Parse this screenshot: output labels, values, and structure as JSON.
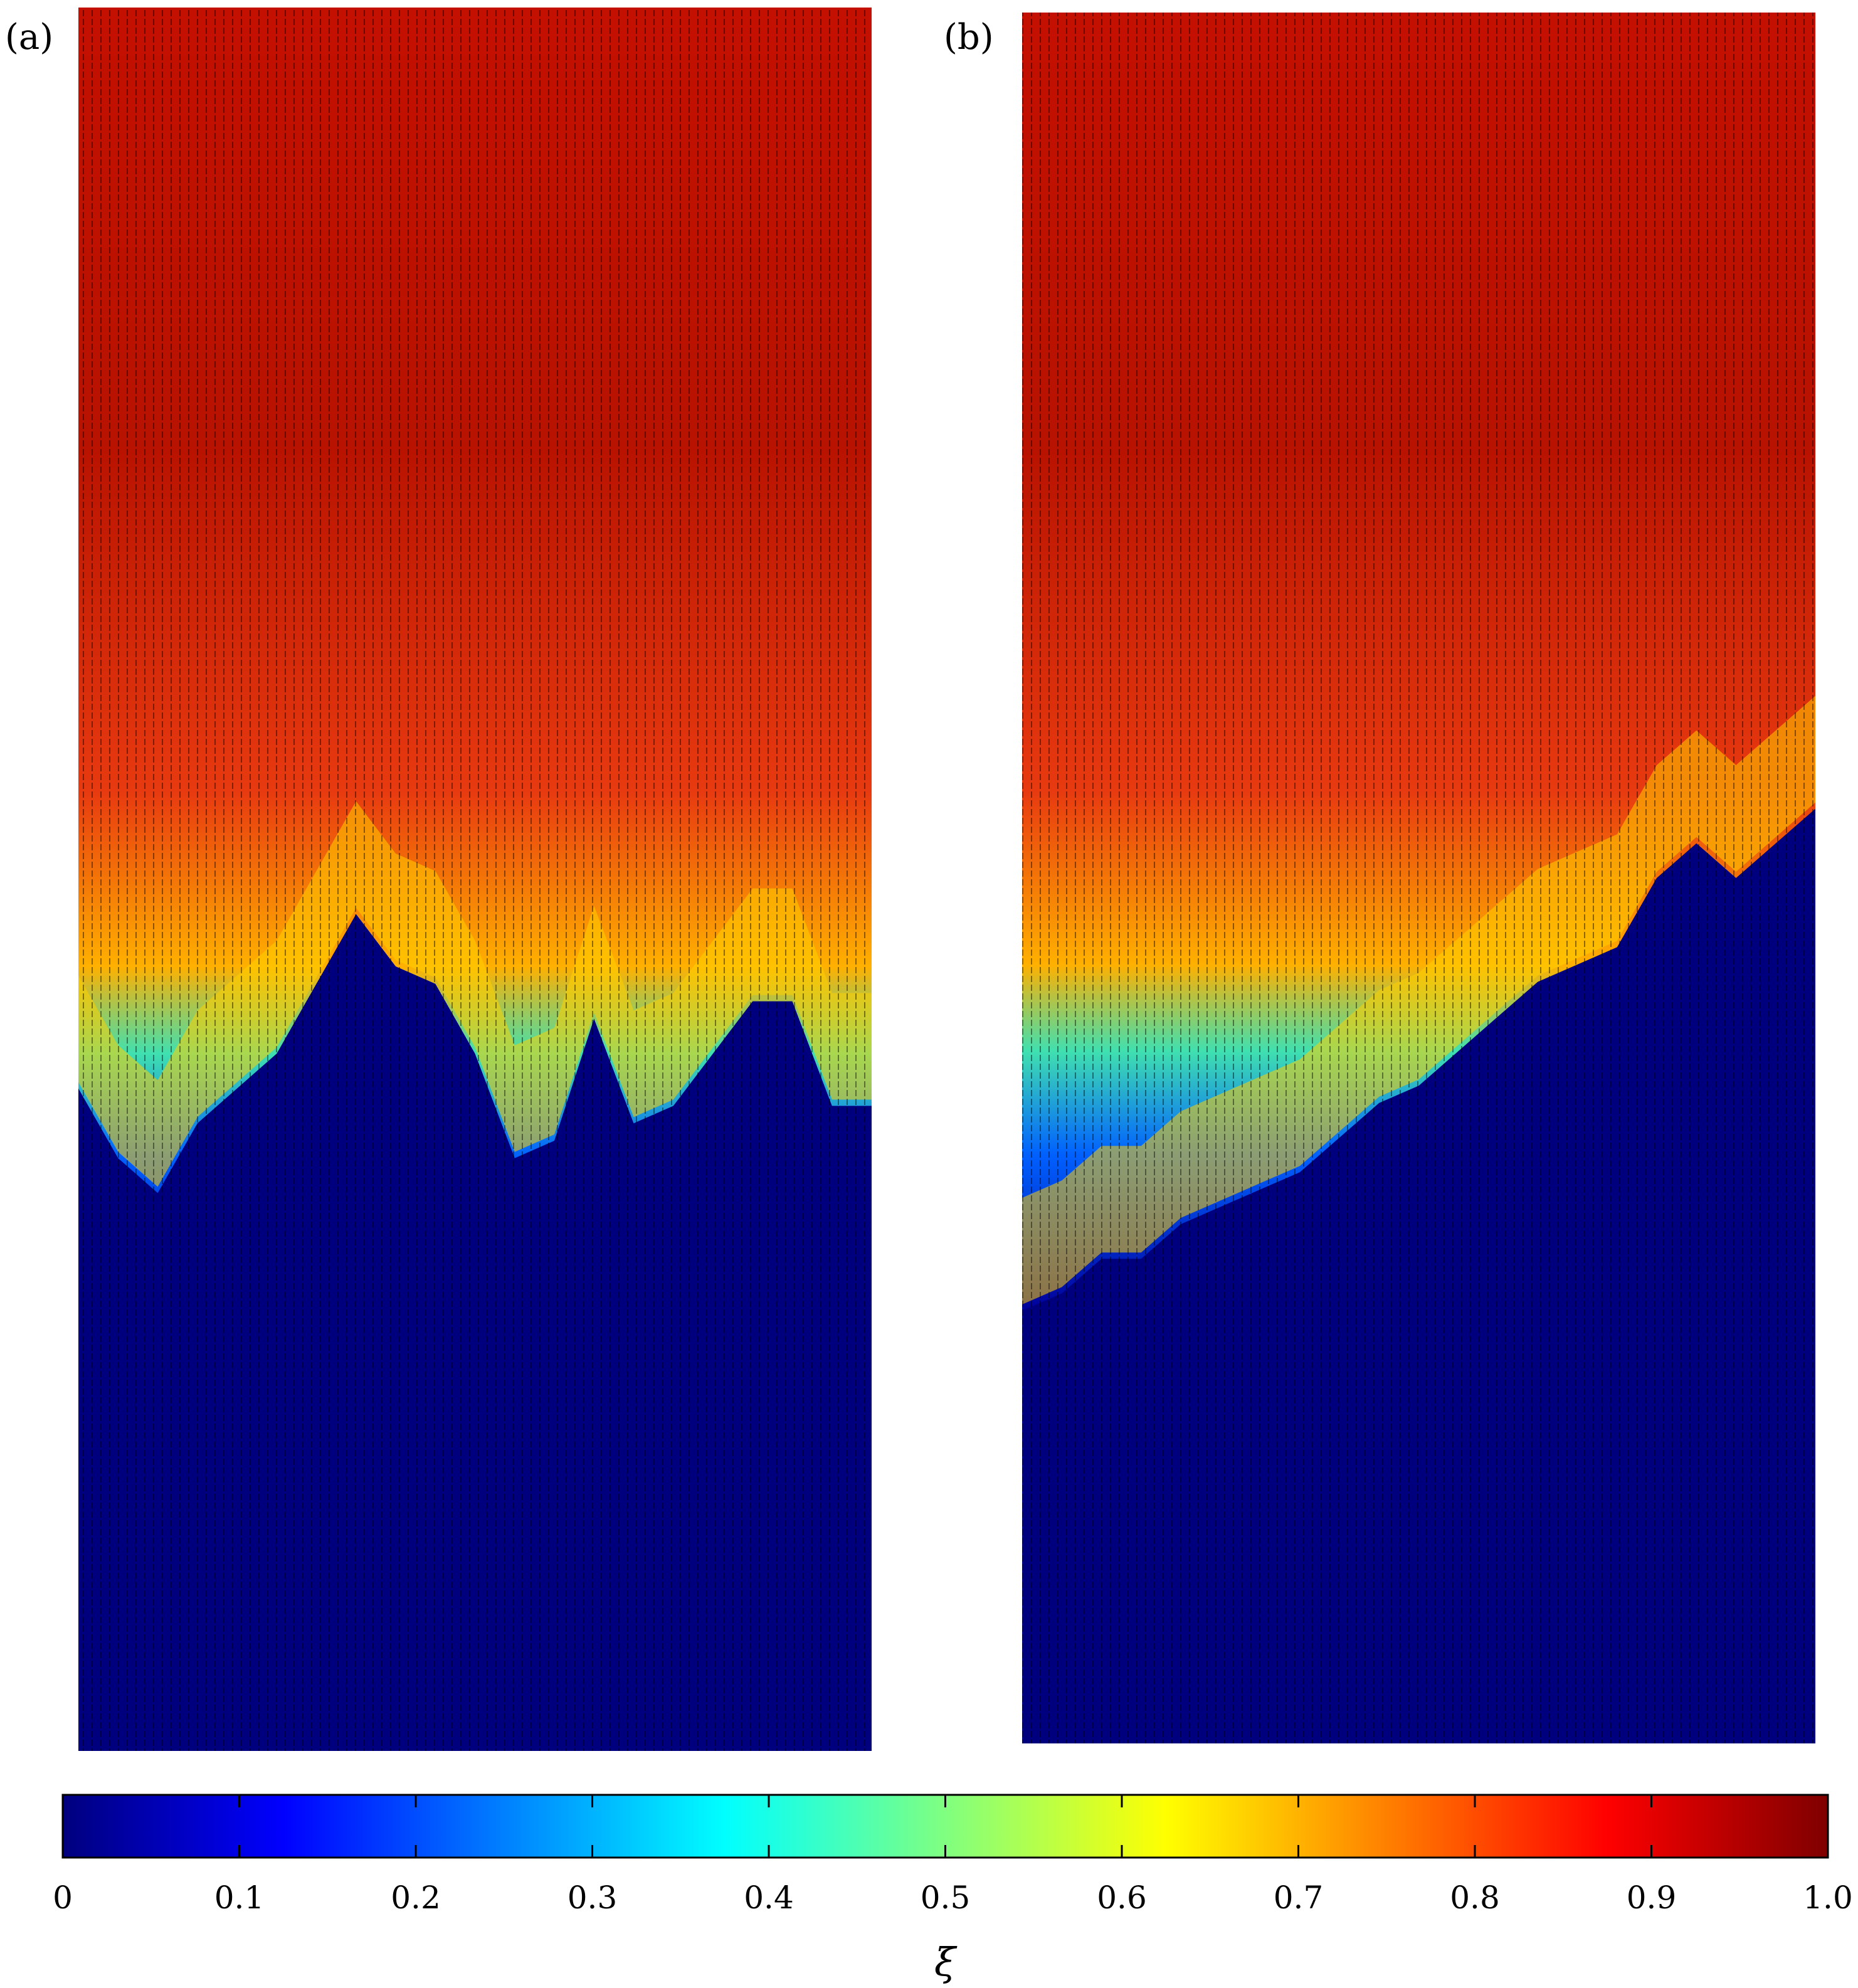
{
  "chart_data": [
    {
      "type": "heatmap",
      "panel_label": "(a)",
      "description_fields": {
        "field": "scalar concentration ξ with velocity vectors",
        "front_profile": [
          [
            0.0,
            0.38
          ],
          [
            0.05,
            0.34
          ],
          [
            0.1,
            0.32
          ],
          [
            0.15,
            0.36
          ],
          [
            0.2,
            0.38
          ],
          [
            0.25,
            0.4
          ],
          [
            0.3,
            0.44
          ],
          [
            0.35,
            0.48
          ],
          [
            0.4,
            0.45
          ],
          [
            0.45,
            0.44
          ],
          [
            0.5,
            0.4
          ],
          [
            0.55,
            0.34
          ],
          [
            0.6,
            0.35
          ],
          [
            0.65,
            0.42
          ],
          [
            0.7,
            0.36
          ],
          [
            0.75,
            0.37
          ],
          [
            0.8,
            0.4
          ],
          [
            0.85,
            0.43
          ],
          [
            0.9,
            0.43
          ],
          [
            0.95,
            0.37
          ],
          [
            1.0,
            0.37
          ]
        ]
      }
    },
    {
      "type": "heatmap",
      "panel_label": "(b)",
      "description_fields": {
        "field": "scalar concentration ξ with velocity vectors",
        "front_profile": [
          [
            0.0,
            0.25
          ],
          [
            0.05,
            0.26
          ],
          [
            0.1,
            0.28
          ],
          [
            0.15,
            0.28
          ],
          [
            0.2,
            0.3
          ],
          [
            0.25,
            0.31
          ],
          [
            0.3,
            0.32
          ],
          [
            0.35,
            0.33
          ],
          [
            0.4,
            0.35
          ],
          [
            0.45,
            0.37
          ],
          [
            0.5,
            0.38
          ],
          [
            0.55,
            0.4
          ],
          [
            0.6,
            0.42
          ],
          [
            0.65,
            0.44
          ],
          [
            0.7,
            0.45
          ],
          [
            0.75,
            0.46
          ],
          [
            0.8,
            0.5
          ],
          [
            0.85,
            0.52
          ],
          [
            0.9,
            0.5
          ],
          [
            0.95,
            0.52
          ],
          [
            1.0,
            0.54
          ]
        ]
      }
    }
  ],
  "colorbar": {
    "label": "ξ",
    "range": [
      0,
      1.0
    ],
    "ticks": [
      "0",
      "0.1",
      "0.2",
      "0.3",
      "0.4",
      "0.5",
      "0.6",
      "0.7",
      "0.8",
      "0.9",
      "1.0"
    ],
    "colormap": "jet",
    "colormap_stops": [
      "#00007f",
      "#0000ff",
      "#0080ff",
      "#00ffff",
      "#80ff80",
      "#ffff00",
      "#ff8000",
      "#ff0000",
      "#7f0000"
    ]
  }
}
